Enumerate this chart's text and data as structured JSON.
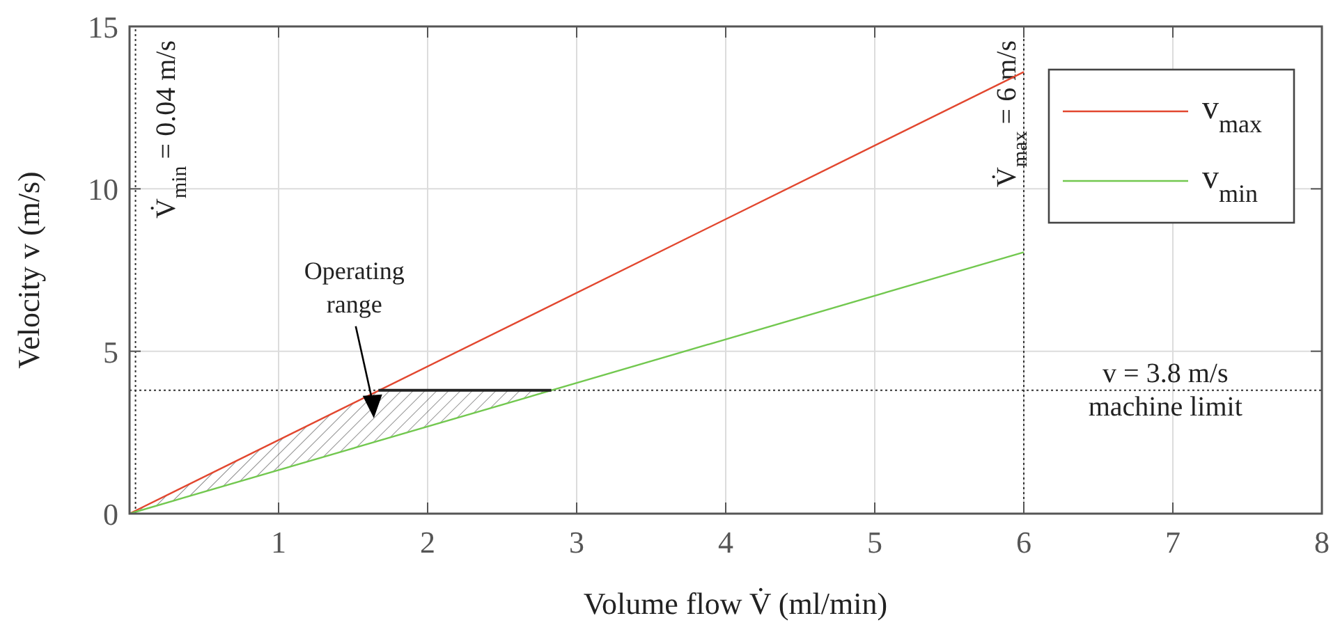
{
  "chart_data": {
    "type": "line",
    "xlabel": "Volume flow V̇ (ml/min)",
    "ylabel": "Velocity v (m/s)",
    "xlim": [
      0,
      8
    ],
    "ylim": [
      0,
      15
    ],
    "xticks": [
      {
        "value": 0,
        "label": null
      },
      1,
      2,
      3,
      4,
      5,
      6,
      7,
      8
    ],
    "yticks": [
      0,
      5,
      10,
      15
    ],
    "grid": true,
    "legend": "top right",
    "line_style": "solid",
    "series": [
      {
        "name": "v$_{max}$",
        "color": "#e2472f",
        "x": [
          0,
          6
        ],
        "values": [
          0,
          13.6
        ]
      },
      {
        "name": "v$_{min}$",
        "color": "#72c84f",
        "x": [
          0,
          6
        ],
        "values": [
          0,
          8.05
        ]
      },
      {
        "type": "line",
        "color": "#222222",
        "x": [
          1.67,
          2.83
        ],
        "values": [
          3.8,
          3.8
        ]
      }
    ],
    "ref_lines": [
      {
        "axis": "x",
        "value": 0.04,
        "label": "V̇$_{min}$ = 0.04 m/s",
        "line_style": "dotted"
      },
      {
        "axis": "x",
        "value": 6,
        "label": "V̇$_{max}$ = 6 m/s",
        "line_style": "dotted"
      },
      {
        "axis": "y",
        "value": 3.8,
        "label": "v = 3.8 m/s\nmachine limit",
        "line_style": "dotted"
      }
    ],
    "annotations": [
      "Operating range"
    ]
  }
}
